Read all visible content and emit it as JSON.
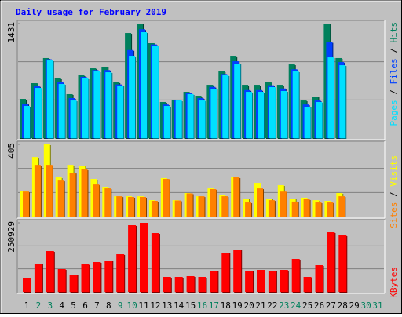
{
  "chart_data": {
    "type": "bar",
    "title": "Daily usage for February 2019",
    "categories": [
      "1",
      "2",
      "3",
      "4",
      "5",
      "6",
      "7",
      "8",
      "9",
      "10",
      "11",
      "12",
      "13",
      "14",
      "15",
      "16",
      "17",
      "18",
      "19",
      "20",
      "21",
      "22",
      "23",
      "24",
      "25",
      "26",
      "27",
      "28",
      "29",
      "30",
      "31"
    ],
    "category_colors": [
      "#000000",
      "#00805c",
      "#00805c",
      "#000000",
      "#000000",
      "#000000",
      "#000000",
      "#000000",
      "#00805c",
      "#00805c",
      "#000000",
      "#000000",
      "#000000",
      "#000000",
      "#000000",
      "#00805c",
      "#00805c",
      "#000000",
      "#000000",
      "#000000",
      "#000000",
      "#000000",
      "#00805c",
      "#00805c",
      "#000000",
      "#000000",
      "#000000",
      "#000000",
      "#000000",
      "#00805c",
      "#00805c"
    ],
    "panels": [
      {
        "ylim": [
          0,
          1431
        ],
        "yticks": [
          1431
        ],
        "series": [
          {
            "name": "Hits",
            "color": "#00805c",
            "values": [
              490,
              686,
              1000,
              745,
              549,
              784,
              872,
              892,
              696,
              1313,
              1431,
              1186,
              451,
              480,
              578,
              529,
              666,
              833,
              1019,
              666,
              666,
              696,
              666,
              921,
              470,
              519,
              1431,
              1000,
              null,
              null,
              null
            ]
          },
          {
            "name": "Files",
            "color": "#0040ff",
            "values": [
              430,
              650,
              985,
              700,
              500,
              765,
              850,
              850,
              670,
              1100,
              1360,
              1170,
              420,
              475,
              560,
              500,
              640,
              800,
              960,
              600,
              600,
              660,
              620,
              860,
              420,
              470,
              1200,
              950,
              null,
              null,
              null
            ]
          },
          {
            "name": "Pages",
            "color": "#00e0ff",
            "values": [
              402,
              627,
              970,
              676,
              470,
              745,
              833,
              823,
              657,
              1019,
              1323,
              1156,
              402,
              470,
              549,
              470,
              617,
              784,
              931,
              578,
              578,
              637,
              588,
              833,
              392,
              451,
              1009,
              911,
              null,
              null,
              null
            ]
          }
        ]
      },
      {
        "ylim": [
          0,
          405
        ],
        "yticks": [
          405
        ],
        "series": [
          {
            "name": "Visits",
            "color": "#ffff00",
            "values": [
              145,
              334,
              405,
              220,
              290,
              286,
              211,
              167,
              114,
              114,
              114,
              92,
              216,
              92,
              132,
              114,
              158,
              119,
              220,
              101,
              189,
              101,
              176,
              101,
              106,
              92,
              88,
              132,
              null,
              null,
              null
            ]
          },
          {
            "name": "Sites",
            "color": "#ff8000",
            "values": [
              140,
              290,
              290,
              202,
              246,
              264,
              180,
              158,
              114,
              110,
              110,
              88,
              211,
              90,
              130,
              114,
              154,
              114,
              220,
              79,
              158,
              92,
              140,
              84,
              97,
              79,
              79,
              114,
              null,
              null,
              null
            ]
          }
        ]
      },
      {
        "ylim": [
          0,
          250929
        ],
        "yticks": [
          250929
        ],
        "series": [
          {
            "name": "KBytes",
            "color": "#ff0000",
            "values": [
              51318,
              102636,
              148252,
              82679,
              62722,
              99785,
              108338,
              114040,
              136848,
              242335,
              250929,
              213825,
              54169,
              54169,
              57020,
              54169,
              76977,
              142550,
              153954,
              76977,
              79828,
              76977,
              79828,
              119742,
              54169,
              96934,
              216676,
              205272,
              null,
              null,
              null
            ]
          }
        ]
      }
    ]
  }
}
